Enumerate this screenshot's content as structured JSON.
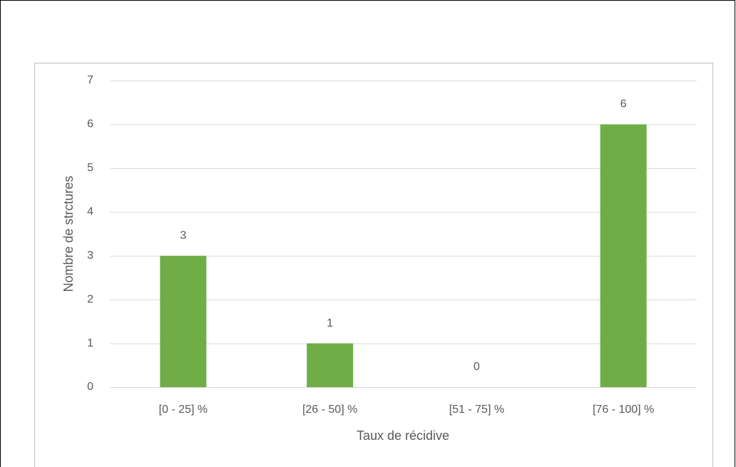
{
  "chart_data": {
    "type": "bar",
    "categories": [
      "[0 - 25] %",
      "[26 - 50] %",
      "[51 - 75] %",
      "[76 - 100] %"
    ],
    "values": [
      3,
      1,
      0,
      6
    ],
    "color": "#70ad47",
    "xlabel": "Taux de récidive",
    "ylabel": "Nombre de strctures",
    "ylim": [
      0,
      7
    ],
    "yticks": [
      0,
      1,
      2,
      3,
      4,
      5,
      6,
      7
    ],
    "grid": true
  }
}
